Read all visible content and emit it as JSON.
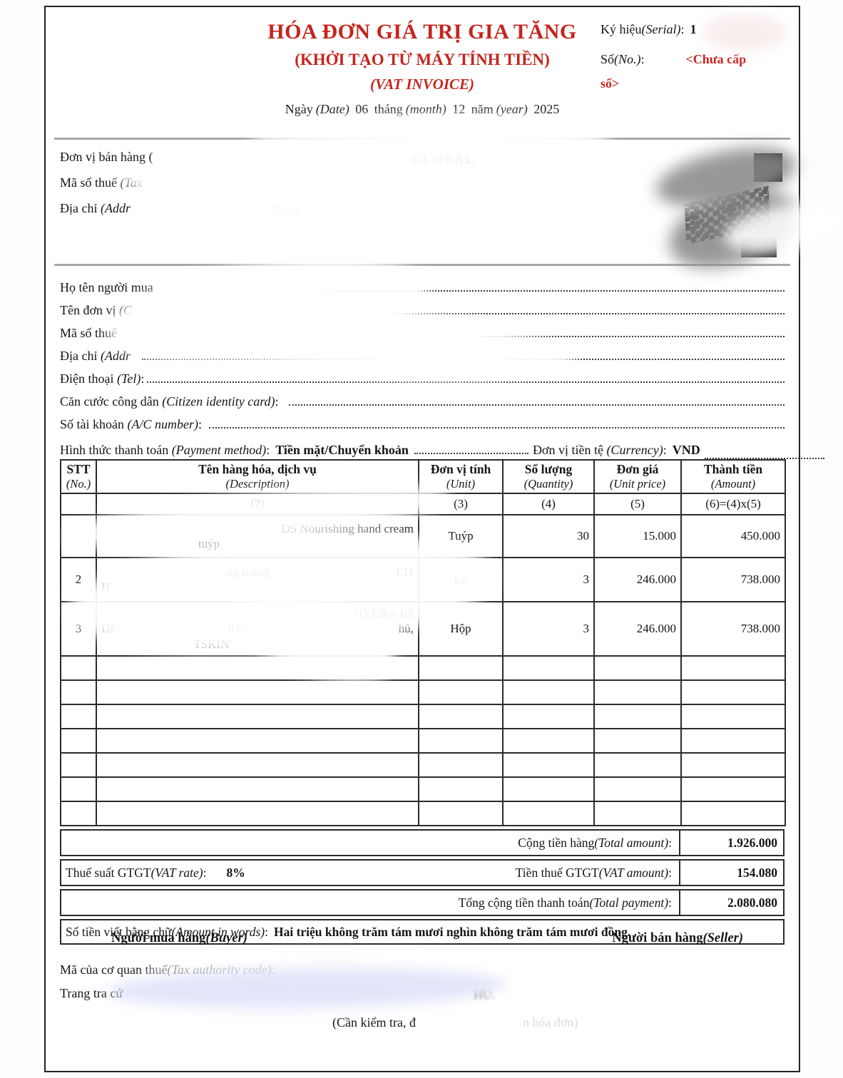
{
  "header": {
    "title": "HÓA ĐƠN GIÁ TRỊ GIA TĂNG",
    "subtitle": "(KHỞI TẠO TỪ MÁY TÍNH TIỀN)",
    "subtitle_en": "(VAT INVOICE)",
    "date": {
      "ngay": "Ngày",
      "date_en": "(Date)",
      "day": "06",
      "thang": "tháng",
      "month_en": "(month)",
      "month": "12",
      "nam": "năm",
      "year_en": "(year)",
      "year": "2025"
    },
    "serial": {
      "label_vi": "Ký hiệu",
      "label_en": "(Serial)",
      "colon": ":",
      "value": "1"
    },
    "number": {
      "label_vi": "Số",
      "label_en": "(No.)",
      "colon": ":",
      "value_line1": "<Chưa cấp",
      "value_line2": "số>"
    }
  },
  "seller": {
    "name_label": "Đơn vị bán hàng (",
    "name_fragment": "GLOBAL",
    "tax_label_vi": "Mã số thuế ",
    "tax_label_en": "(Tax",
    "addr_label_vi": "Địa chỉ ",
    "addr_label_en": "(Addr",
    "addr_fragment": "Trung"
  },
  "buyer": {
    "rows": [
      {
        "vi": "Họ tên người mua",
        "en": "",
        "suffix": ""
      },
      {
        "vi": "Tên đơn vị ",
        "en": "(C",
        "suffix": ""
      },
      {
        "vi": "Mã số thuế",
        "en": "",
        "suffix": ""
      },
      {
        "vi": "Địa chỉ ",
        "en": "(Addr",
        "suffix": ""
      },
      {
        "vi": "Điện thoại ",
        "en": "(Tel)",
        "suffix": ":"
      },
      {
        "vi": "Căn cước công dân ",
        "en": "(Citizen identity card)",
        "suffix": ":"
      },
      {
        "vi": "Số tài khoản ",
        "en": "(A/C number)",
        "suffix": ":"
      }
    ],
    "payment": {
      "label_vi": "Hình thức thanh toán ",
      "label_en": "(Payment method)",
      "colon": ":",
      "value": "Tiền mặt/Chuyển khoản"
    },
    "currency": {
      "label_vi": "Đơn vị tiền tệ ",
      "label_en": "(Currency)",
      "colon": ":",
      "value": "VND"
    }
  },
  "table": {
    "headers": [
      {
        "vi": "STT",
        "en": "(No.)"
      },
      {
        "vi": "Tên hàng hóa, dịch vụ",
        "en": "(Description)"
      },
      {
        "vi": "Đơn vị tính",
        "en": "(Unit)"
      },
      {
        "vi": "Số lượng",
        "en": "(Quantity)"
      },
      {
        "vi": "Đơn giá",
        "en": "(Unit price)"
      },
      {
        "vi": "Thành tiền",
        "en": "(Amount)"
      }
    ],
    "subheaders": [
      "",
      "(2)",
      "(3)",
      "(4)",
      "(5)",
      "(6)=(4)x(5)"
    ],
    "rows": [
      {
        "stt": "",
        "desc_lines": [
          [
            "",
            "DS Nourishing hand cream"
          ],
          [
            "",
            "tuýp",
            "",
            ""
          ]
        ],
        "unit": "Tuýp",
        "qty": "30",
        "price": "15.000",
        "amount": "450.000"
      },
      {
        "stt": "2",
        "desc_lines": [
          [
            "",
            "ng trang(",
            "LTI"
          ],
          [
            "H",
            "",
            "",
            ""
          ]
        ],
        "unit": "Lọ",
        "qty": "3",
        "price": "246.000",
        "amount": "738.000"
      },
      {
        "stt": "3",
        "desc_lines": [
          [
            "",
            "HYDRA B5"
          ],
          [
            "DF",
            "REAM ), du",
            "hũ,"
          ],
          [
            "",
            "TSKIN",
            "",
            ""
          ]
        ],
        "unit": "Hộp",
        "qty": "3",
        "price": "246.000",
        "amount": "738.000"
      }
    ],
    "empty_rows": 7
  },
  "totals": {
    "subtotal": {
      "label_vi": "Cộng tiền hàng",
      "label_en": "(Total amount)",
      "colon": ":",
      "value": "1.926.000"
    },
    "vat_rate": {
      "label_vi": "Thuế suất GTGT",
      "label_en": "(VAT rate)",
      "colon": ":",
      "value": "8%"
    },
    "vat_amount": {
      "label_vi": "Tiền thuế GTGT",
      "label_en": "(VAT amount)",
      "colon": ":",
      "value": "154.080"
    },
    "total": {
      "label_vi": "Tổng cộng tiền thanh toán",
      "label_en": "(Total payment)",
      "colon": ":",
      "value": "2.080.080"
    },
    "in_words": {
      "label_vi": "Số tiền viết bằng chữ",
      "label_en": "(Amount in words)",
      "colon": ":",
      "value": "Hai triệu không trăm tám mươi nghìn không trăm tám mươi đồng."
    }
  },
  "signatures": {
    "buyer_vi": "Người mua hàng",
    "buyer_en": "(Buyer)",
    "seller_vi": "Người bán hàng",
    "seller_en": "(Seller)"
  },
  "footer": {
    "tax_code_vi": "Mã của cơ quan thuế",
    "tax_code_en": "(Tax authority code):",
    "lookup_prefix": "Trang tra cứ",
    "lookup_fragment": "HU.",
    "note_prefix": "(Cần kiểm tra, đ",
    "note_suffix": "n hóa đơn)"
  },
  "colors": {
    "accent_red": "#c5241d",
    "border_dark": "#2b2b2b",
    "separator_gray": "#a7a7a7"
  }
}
